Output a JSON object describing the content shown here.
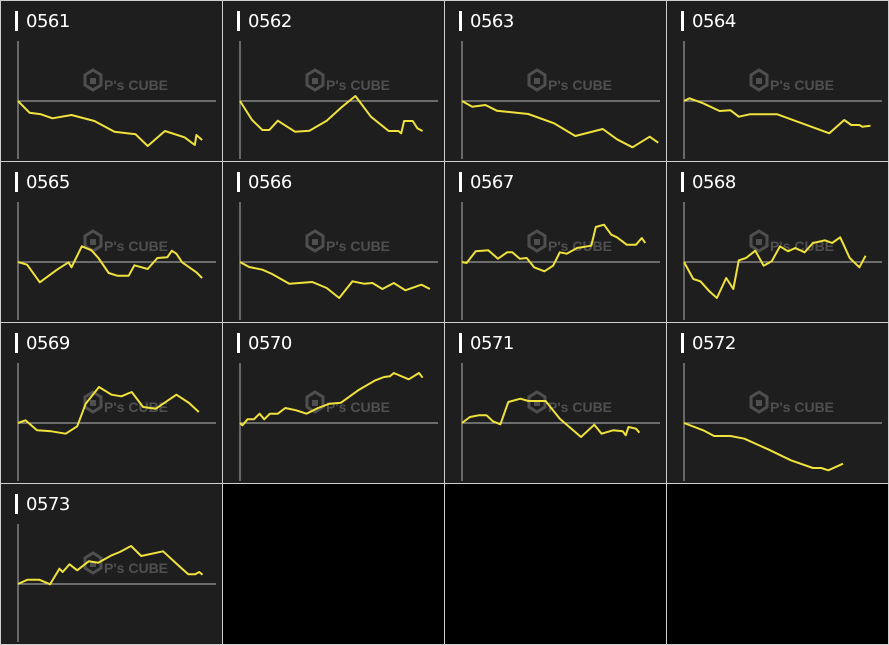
{
  "watermark": {
    "logo_text": "P's CUBE"
  },
  "colors": {
    "line": "#f0e23c",
    "background": "#1e1e1e",
    "axis": "#9a9a9a",
    "watermark": "#555555"
  },
  "chart_data": [
    {
      "type": "line",
      "title": "0561",
      "ylim": [
        -60,
        60
      ],
      "xlim": [
        0,
        100
      ],
      "x": [
        0,
        5.8,
        11.6,
        17.4,
        27,
        38.6,
        48.7,
        59.4,
        65.5,
        74.2,
        84.1,
        89.3,
        90.1,
        93
      ],
      "y": [
        0,
        -11.7,
        -13.3,
        -17.3,
        -14,
        -20,
        -30.7,
        -33.3,
        -45,
        -30,
        -36.3,
        -44,
        -34,
        -39
      ]
    },
    {
      "type": "line",
      "title": "0562",
      "ylim": [
        -60,
        60
      ],
      "xlim": [
        0,
        100
      ],
      "x": [
        0,
        6.1,
        11.3,
        14.8,
        19.1,
        27.8,
        35.1,
        43.8,
        51,
        58.3,
        66.1,
        75.1,
        80,
        81.4,
        82.9,
        87.2,
        89.6,
        92.2
      ],
      "y": [
        0,
        -19,
        -29,
        -29,
        -19.7,
        -30.7,
        -29.7,
        -19.7,
        -6.7,
        5,
        -15.7,
        -30,
        -30,
        -32.3,
        -20,
        -20,
        -27.3,
        -30
      ]
    },
    {
      "type": "line",
      "title": "0563",
      "ylim": [
        -60,
        60
      ],
      "xlim": [
        0,
        100
      ],
      "x": [
        0,
        5.2,
        11.8,
        17.6,
        33.5,
        46.5,
        57.2,
        71.1,
        78.3,
        86.1,
        94.8,
        99.1
      ],
      "y": [
        0,
        -5.7,
        -4,
        -9.7,
        -13,
        -22.3,
        -35,
        -28,
        -38.3,
        -46.3,
        -35.7,
        -41.7
      ]
    },
    {
      "type": "line",
      "title": "0564",
      "ylim": [
        -60,
        60
      ],
      "xlim": [
        0,
        100
      ],
      "x": [
        0,
        2.8,
        9.7,
        18,
        23.5,
        27.7,
        33.2,
        47.1,
        59.6,
        73.4,
        80.9,
        84.5,
        88.6,
        90,
        94.2
      ],
      "y": [
        0,
        2.7,
        -2.3,
        -10,
        -9.3,
        -15.7,
        -13.3,
        -13.3,
        -22.3,
        -32.3,
        -19,
        -24,
        -24,
        -25.7,
        -24.7
      ]
    },
    {
      "type": "line",
      "title": "0565",
      "ylim": [
        -60,
        60
      ],
      "xlim": [
        0,
        100
      ],
      "x": [
        0,
        4.6,
        11,
        19.7,
        25.5,
        27,
        32.2,
        37.1,
        40.6,
        45.8,
        50.1,
        55.9,
        58.8,
        65.5,
        70.4,
        75.4,
        77.7,
        80,
        82.9,
        90.1,
        93
      ],
      "y": [
        0,
        -2.7,
        -20.3,
        -7.7,
        -0.3,
        -5.3,
        15.7,
        11.7,
        4,
        -11,
        -13.7,
        -13.7,
        -3.3,
        -7,
        4,
        4.7,
        11.3,
        8.3,
        -0.3,
        -10.3,
        -16
      ]
    },
    {
      "type": "line",
      "title": "0566",
      "ylim": [
        -60,
        60
      ],
      "xlim": [
        0,
        100
      ],
      "x": [
        0,
        4.6,
        11.3,
        16.2,
        24.9,
        36.5,
        43.8,
        50.1,
        56.8,
        62.6,
        66.9,
        71.9,
        77.7,
        83.5,
        91.6,
        95.9
      ],
      "y": [
        0,
        -5,
        -7.7,
        -12,
        -21.7,
        -20,
        -26,
        -36,
        -19.3,
        -21.7,
        -21,
        -27,
        -21,
        -28.3,
        -22.7,
        -27
      ]
    },
    {
      "type": "line",
      "title": "0567",
      "ylim": [
        -60,
        60
      ],
      "xlim": [
        0,
        100
      ],
      "x": [
        0,
        2.3,
        6.9,
        13.3,
        18.2,
        22.8,
        25.4,
        29.2,
        32.7,
        36.4,
        41.6,
        46,
        49.4,
        52.9,
        58.1,
        65.3,
        67.6,
        71.7,
        75.4,
        78.3,
        83.2,
        87.9,
        90.8,
        92.5
      ],
      "y": [
        0,
        -1,
        10.7,
        11.7,
        3.3,
        9.7,
        9.7,
        3.3,
        4,
        -5.3,
        -9.3,
        -3.7,
        9.7,
        8.3,
        14,
        16.3,
        35,
        37.3,
        27.3,
        24.7,
        17.3,
        17.3,
        24,
        19
      ]
    },
    {
      "type": "line",
      "title": "0568",
      "ylim": [
        -60,
        60
      ],
      "xlim": [
        0,
        100
      ],
      "x": [
        0,
        4.7,
        8.3,
        12.5,
        16.6,
        21.3,
        24.9,
        27.7,
        31.3,
        36,
        40.2,
        44.3,
        48.5,
        52.6,
        56.2,
        60.9,
        65.1,
        71.2,
        74.8,
        78.9,
        83.7,
        88.6,
        91.7
      ],
      "y": [
        0,
        -17,
        -19.3,
        -28.7,
        -36,
        -16,
        -27,
        1.7,
        4,
        11.3,
        -3.7,
        0.7,
        15.7,
        10.7,
        14,
        9.7,
        19,
        21.7,
        19,
        24.7,
        4,
        -5.3,
        6.3
      ]
    },
    {
      "type": "line",
      "title": "0569",
      "ylim": [
        -60,
        60
      ],
      "xlim": [
        0,
        100
      ],
      "x": [
        0,
        3.8,
        9.6,
        16.8,
        24.1,
        29.9,
        34.2,
        40.9,
        47.2,
        52.2,
        57.4,
        63.2,
        69.6,
        80,
        86.4,
        91.3
      ],
      "y": [
        0,
        2.7,
        -7.3,
        -8.3,
        -10.7,
        -3.3,
        19.3,
        36,
        28.3,
        26.7,
        31,
        16,
        14.3,
        28.3,
        20,
        11
      ]
    },
    {
      "type": "line",
      "title": "0570",
      "ylim": [
        -60,
        60
      ],
      "xlim": [
        0,
        100
      ],
      "x": [
        0,
        1.2,
        3.8,
        7,
        9.9,
        12.2,
        15.1,
        19.1,
        22.9,
        28.4,
        33.6,
        39.4,
        45.2,
        51,
        59.7,
        68.4,
        72.8,
        75.7,
        77.7,
        85.2,
        90.4,
        92.2
      ],
      "y": [
        0,
        -2.3,
        3.7,
        3.7,
        9.3,
        3.7,
        9.3,
        9.3,
        15,
        12.7,
        9.3,
        15,
        19.3,
        20.3,
        32.7,
        42.7,
        46,
        46.7,
        50,
        43.7,
        50,
        45.3
      ]
    },
    {
      "type": "line",
      "title": "0571",
      "ylim": [
        -60,
        60
      ],
      "xlim": [
        0,
        100
      ],
      "x": [
        0,
        4,
        8.4,
        12.4,
        15.6,
        19.4,
        23.4,
        29.5,
        33.5,
        42.2,
        49.4,
        60.1,
        66.8,
        70.5,
        76.3,
        81.2,
        82.7,
        84.1,
        87.9,
        89.6
      ],
      "y": [
        0,
        6,
        7.7,
        7.7,
        1.7,
        -1.3,
        21,
        24.3,
        22,
        22,
        4.3,
        -14,
        -1.7,
        -10.7,
        -7.3,
        -8.3,
        -12.3,
        -4,
        -5.7,
        -9.7
      ]
    },
    {
      "type": "line",
      "title": "0572",
      "ylim": [
        -60,
        60
      ],
      "xlim": [
        0,
        100
      ],
      "x": [
        0,
        9.7,
        15.2,
        23.5,
        30.5,
        42.9,
        54,
        65.1,
        69.3,
        72.9,
        80.3
      ],
      "y": [
        0,
        -7.3,
        -13,
        -13,
        -15.7,
        -26.7,
        -37.3,
        -45,
        -45,
        -47.3,
        -40.7
      ]
    },
    {
      "type": "line",
      "title": "0573",
      "ylim": [
        -60,
        60
      ],
      "xlim": [
        0,
        100
      ],
      "x": [
        0,
        4.8,
        10.7,
        16.2,
        20.9,
        22.6,
        26,
        29.9,
        35.7,
        40.5,
        47.3,
        51.4,
        57.1,
        62.2,
        73.3,
        81.3,
        86,
        89.5,
        91.5,
        93.2
      ],
      "y": [
        0,
        4.3,
        4.3,
        -0.3,
        15.3,
        12,
        19.7,
        13.7,
        22.7,
        21.3,
        28.7,
        32,
        38,
        28,
        32.7,
        18,
        9.7,
        9.7,
        12,
        9.3
      ]
    }
  ]
}
